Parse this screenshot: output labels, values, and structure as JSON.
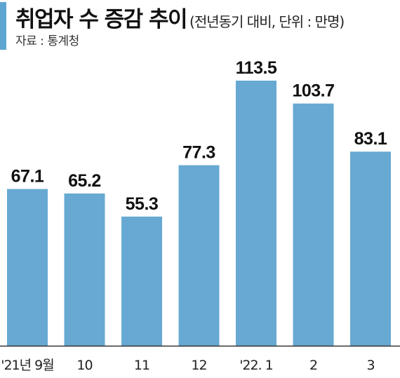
{
  "header": {
    "title": "취업자 수 증감 추이",
    "subtitle": "(전년동기 대비, 단위 : 만명)",
    "source": "자료 : 통계청"
  },
  "colors": {
    "bar": "#67a9d2",
    "accent": "#5ea6d1",
    "baseline": "#333333"
  },
  "chart_data": {
    "type": "bar",
    "title": "취업자 수 증감 추이",
    "subtitle": "(전년동기 대비, 단위 : 만명)",
    "categories": [
      "'21년 9월",
      "10",
      "11",
      "12",
      "'22. 1",
      "2",
      "3"
    ],
    "values": [
      67.1,
      65.2,
      55.3,
      77.3,
      113.5,
      103.7,
      83.1
    ],
    "value_labels": [
      "67.1",
      "65.2",
      "55.3",
      "77.3",
      "113.5",
      "103.7",
      "83.1"
    ],
    "legend": "none",
    "grid": false,
    "ylim": [
      0,
      113.5
    ]
  }
}
